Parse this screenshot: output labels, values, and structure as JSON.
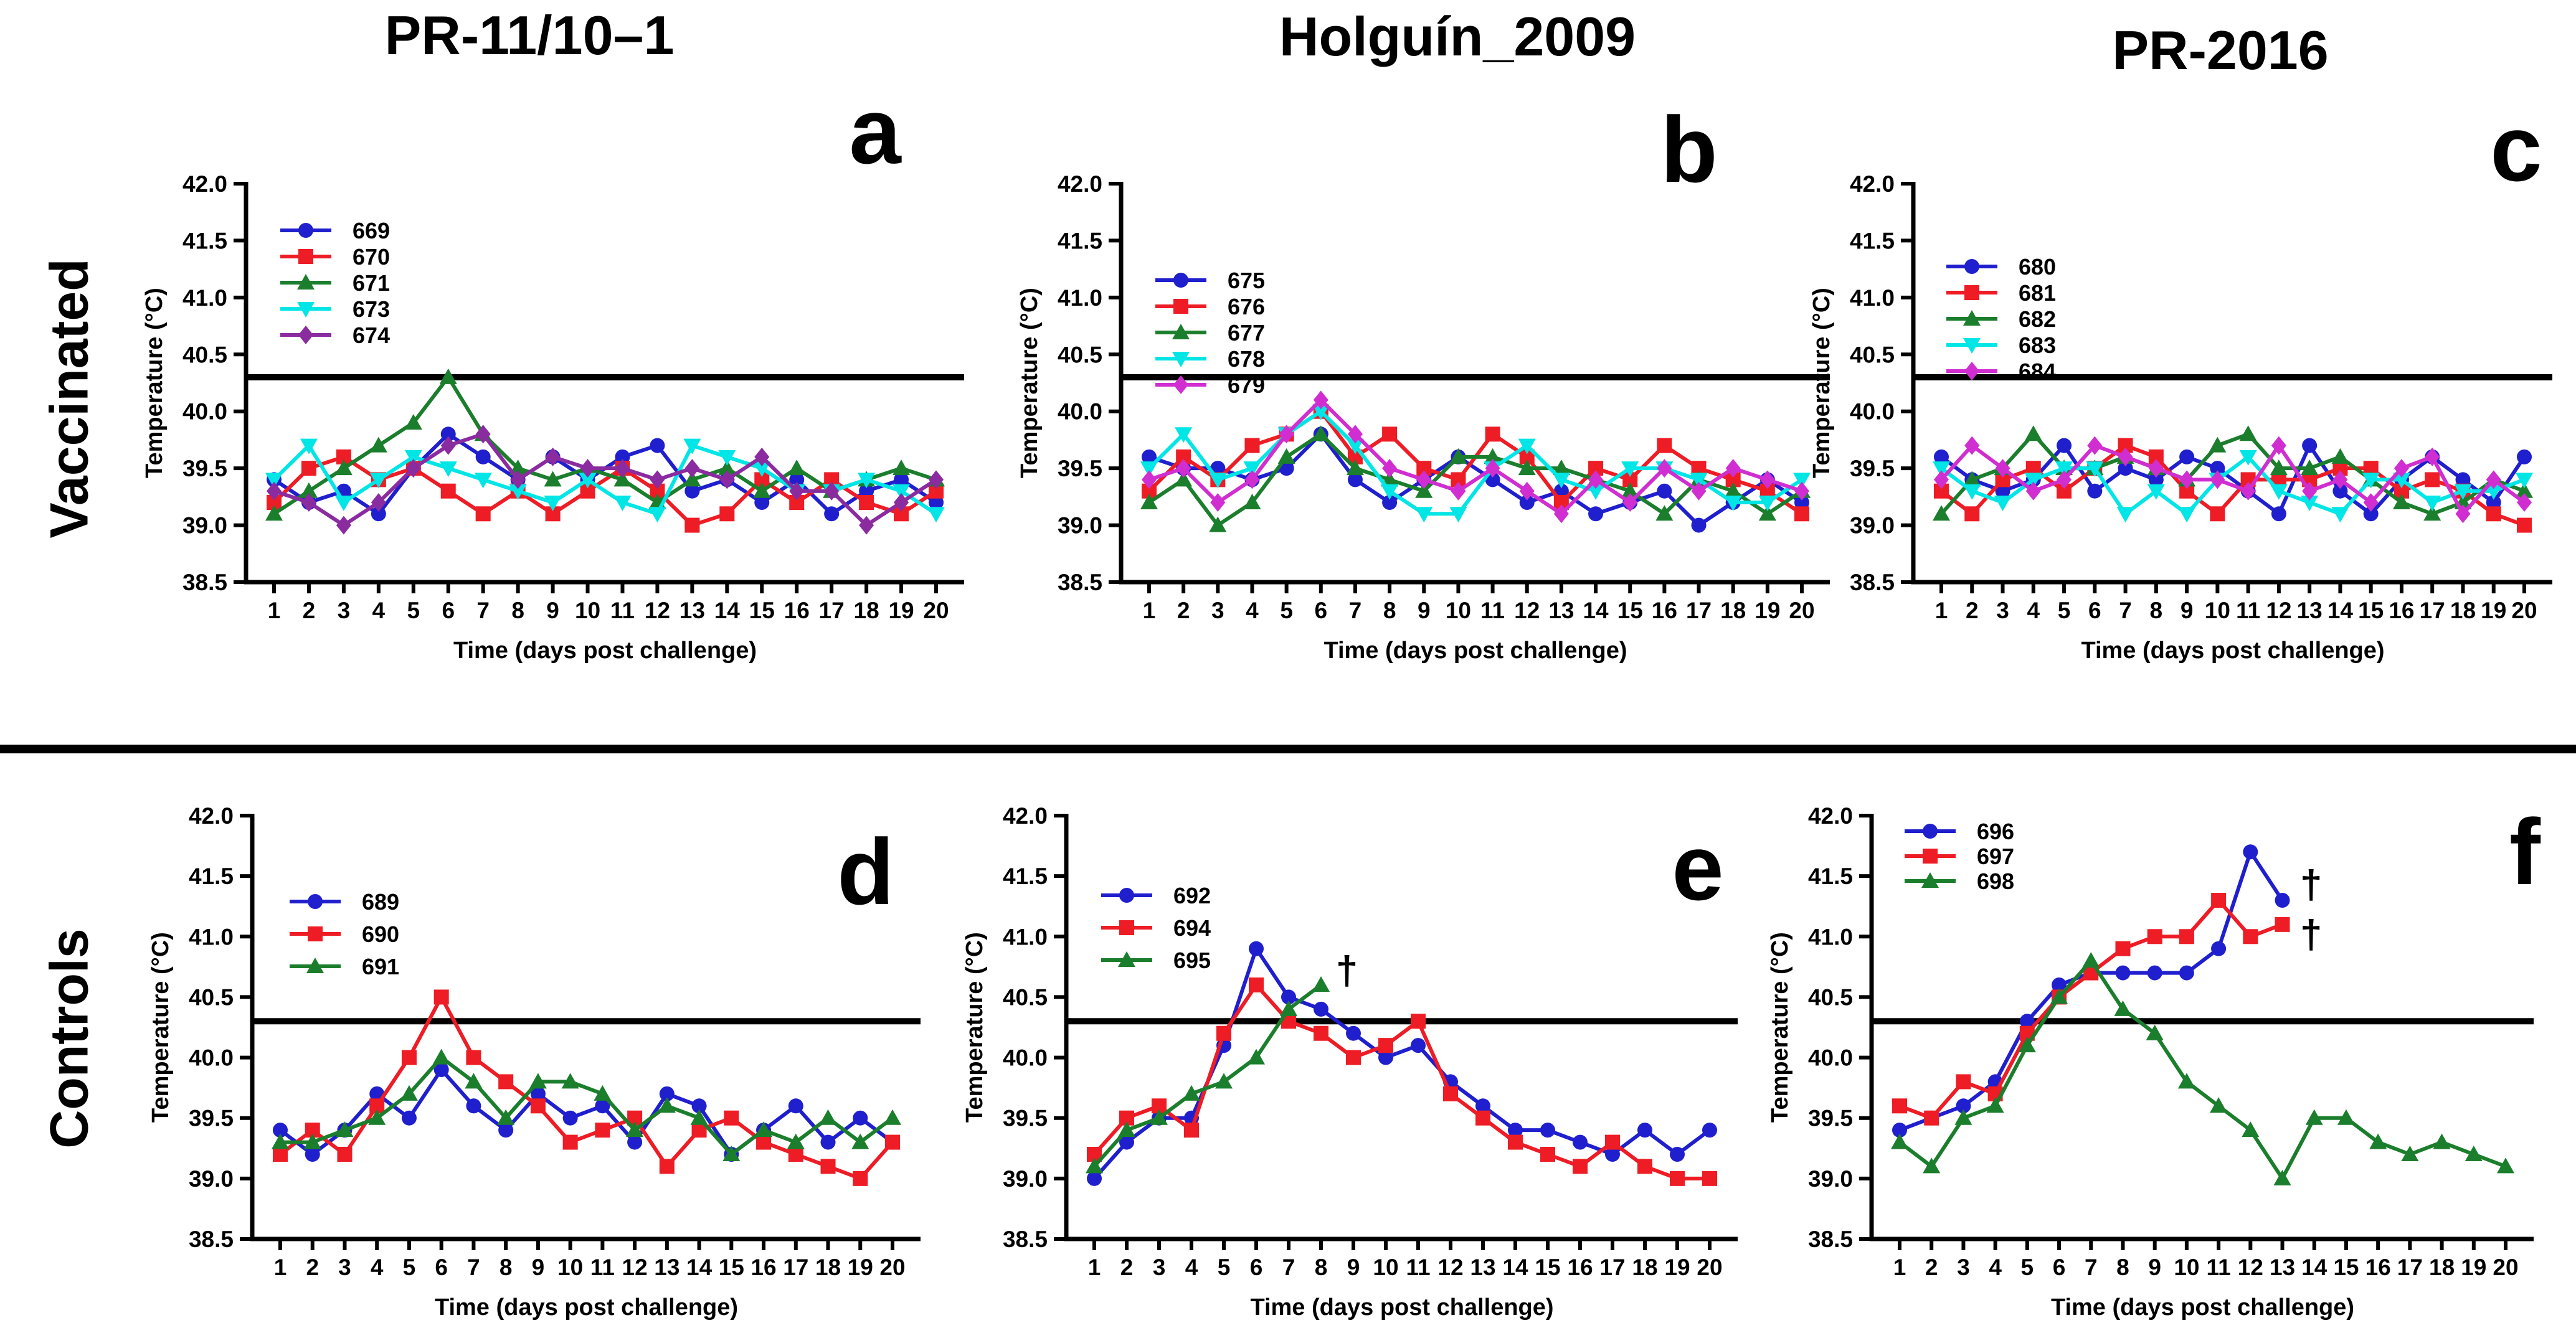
{
  "figure": {
    "column_titles": [
      "PR-11/10–1",
      "Holguín_2009",
      "PR-2016"
    ],
    "row_labels": [
      "Vaccinated",
      "Controls"
    ],
    "xlabel": "Time (days post challenge)",
    "ylabel": "Temperature (°C)",
    "threshold_c": 40.3,
    "ylim": [
      38.5,
      42.0
    ],
    "ytick_step": 0.5,
    "xticks": [
      1,
      2,
      3,
      4,
      5,
      6,
      7,
      8,
      9,
      10,
      11,
      12,
      13,
      14,
      15,
      16,
      17,
      18,
      19,
      20
    ],
    "panel_letters": [
      "a",
      "b",
      "c",
      "d",
      "e",
      "f"
    ],
    "death_symbol": "†"
  },
  "colors": {
    "blue": "#1F1FCE",
    "red": "#EE1C25",
    "green": "#1B7E2C",
    "cyan": "#00E5E5",
    "purple": "#8B2BA0",
    "magenta": "#D02ED0"
  },
  "chart_data": [
    {
      "id": "a",
      "letter": "a",
      "group": "Vaccinated",
      "strain": "PR-11/10–1",
      "type": "line",
      "xlabel": "Time (days post challenge)",
      "ylabel": "Temperature (°C)",
      "ylim": [
        38.5,
        42.0
      ],
      "threshold": 40.3,
      "series": [
        {
          "name": "669",
          "color": "blue",
          "marker": "circle",
          "values": [
            39.4,
            39.2,
            39.3,
            39.1,
            39.5,
            39.8,
            39.6,
            39.4,
            39.6,
            39.4,
            39.6,
            39.7,
            39.3,
            39.4,
            39.2,
            39.4,
            39.1,
            39.3,
            39.4,
            39.2
          ]
        },
        {
          "name": "670",
          "color": "red",
          "marker": "square",
          "values": [
            39.2,
            39.5,
            39.6,
            39.4,
            39.5,
            39.3,
            39.1,
            39.3,
            39.1,
            39.3,
            39.5,
            39.3,
            39.0,
            39.1,
            39.4,
            39.2,
            39.4,
            39.2,
            39.1,
            39.3
          ]
        },
        {
          "name": "671",
          "color": "green",
          "marker": "triangle-up",
          "values": [
            39.1,
            39.3,
            39.5,
            39.7,
            39.9,
            40.3,
            39.8,
            39.5,
            39.4,
            39.5,
            39.4,
            39.2,
            39.4,
            39.5,
            39.3,
            39.5,
            39.3,
            39.4,
            39.5,
            39.4
          ]
        },
        {
          "name": "673",
          "color": "cyan",
          "marker": "triangle-down",
          "values": [
            39.4,
            39.7,
            39.2,
            39.4,
            39.6,
            39.5,
            39.4,
            39.3,
            39.2,
            39.4,
            39.2,
            39.1,
            39.7,
            39.6,
            39.5,
            39.3,
            39.3,
            39.4,
            39.3,
            39.1
          ]
        },
        {
          "name": "674",
          "color": "purple",
          "marker": "diamond",
          "values": [
            39.3,
            39.2,
            39.0,
            39.2,
            39.5,
            39.7,
            39.8,
            39.4,
            39.6,
            39.5,
            39.5,
            39.4,
            39.5,
            39.4,
            39.6,
            39.3,
            39.3,
            39.0,
            39.2,
            39.4
          ]
        }
      ],
      "annotations": []
    },
    {
      "id": "b",
      "letter": "b",
      "group": "Vaccinated",
      "strain": "Holguín_2009",
      "type": "line",
      "xlabel": "Time (days post challenge)",
      "ylabel": "Temperature (°C)",
      "ylim": [
        38.5,
        42.0
      ],
      "threshold": 40.3,
      "series": [
        {
          "name": "675",
          "color": "blue",
          "marker": "circle",
          "values": [
            39.6,
            39.5,
            39.5,
            39.4,
            39.5,
            39.8,
            39.4,
            39.2,
            39.4,
            39.6,
            39.4,
            39.2,
            39.3,
            39.1,
            39.2,
            39.3,
            39.0,
            39.2,
            39.4,
            39.2
          ]
        },
        {
          "name": "676",
          "color": "red",
          "marker": "square",
          "values": [
            39.3,
            39.6,
            39.4,
            39.7,
            39.8,
            40.0,
            39.6,
            39.8,
            39.5,
            39.4,
            39.8,
            39.6,
            39.2,
            39.5,
            39.4,
            39.7,
            39.5,
            39.4,
            39.3,
            39.1
          ]
        },
        {
          "name": "677",
          "color": "green",
          "marker": "triangle-up",
          "values": [
            39.2,
            39.4,
            39.0,
            39.2,
            39.6,
            39.8,
            39.5,
            39.4,
            39.3,
            39.6,
            39.6,
            39.5,
            39.5,
            39.4,
            39.3,
            39.1,
            39.4,
            39.3,
            39.1,
            39.3
          ]
        },
        {
          "name": "678",
          "color": "cyan",
          "marker": "triangle-down",
          "values": [
            39.5,
            39.8,
            39.4,
            39.5,
            39.8,
            40.0,
            39.7,
            39.3,
            39.1,
            39.1,
            39.5,
            39.7,
            39.4,
            39.3,
            39.5,
            39.5,
            39.4,
            39.2,
            39.2,
            39.4
          ]
        },
        {
          "name": "679",
          "color": "magenta",
          "marker": "diamond",
          "values": [
            39.4,
            39.5,
            39.2,
            39.4,
            39.8,
            40.1,
            39.8,
            39.5,
            39.4,
            39.3,
            39.5,
            39.3,
            39.1,
            39.4,
            39.2,
            39.5,
            39.3,
            39.5,
            39.4,
            39.3
          ]
        }
      ],
      "annotations": []
    },
    {
      "id": "c",
      "letter": "c",
      "group": "Vaccinated",
      "strain": "PR-2016",
      "type": "line",
      "xlabel": "Time (days post challenge)",
      "ylabel": "Temperature (°C)",
      "ylim": [
        38.5,
        42.0
      ],
      "threshold": 40.3,
      "series": [
        {
          "name": "680",
          "color": "blue",
          "marker": "circle",
          "values": [
            39.6,
            39.4,
            39.3,
            39.4,
            39.7,
            39.3,
            39.5,
            39.4,
            39.6,
            39.5,
            39.3,
            39.1,
            39.7,
            39.3,
            39.1,
            39.4,
            39.6,
            39.4,
            39.2,
            39.6
          ]
        },
        {
          "name": "681",
          "color": "red",
          "marker": "square",
          "values": [
            39.3,
            39.1,
            39.4,
            39.5,
            39.3,
            39.5,
            39.7,
            39.6,
            39.3,
            39.1,
            39.4,
            39.4,
            39.4,
            39.5,
            39.5,
            39.3,
            39.4,
            39.3,
            39.1,
            39.0
          ]
        },
        {
          "name": "682",
          "color": "green",
          "marker": "triangle-up",
          "values": [
            39.1,
            39.4,
            39.5,
            39.8,
            39.5,
            39.5,
            39.6,
            39.5,
            39.4,
            39.7,
            39.8,
            39.5,
            39.5,
            39.6,
            39.4,
            39.2,
            39.1,
            39.2,
            39.4,
            39.3
          ]
        },
        {
          "name": "683",
          "color": "cyan",
          "marker": "triangle-down",
          "values": [
            39.5,
            39.3,
            39.2,
            39.4,
            39.5,
            39.5,
            39.1,
            39.3,
            39.1,
            39.4,
            39.6,
            39.3,
            39.2,
            39.1,
            39.4,
            39.4,
            39.2,
            39.3,
            39.3,
            39.4
          ]
        },
        {
          "name": "684",
          "color": "magenta",
          "marker": "diamond",
          "values": [
            39.4,
            39.7,
            39.5,
            39.3,
            39.4,
            39.7,
            39.6,
            39.5,
            39.4,
            39.4,
            39.3,
            39.7,
            39.3,
            39.4,
            39.2,
            39.5,
            39.6,
            39.1,
            39.4,
            39.2
          ]
        }
      ],
      "annotations": []
    },
    {
      "id": "d",
      "letter": "d",
      "group": "Controls",
      "strain": "PR-11/10–1",
      "type": "line",
      "xlabel": "Time (days post challenge)",
      "ylabel": "Temperature (°C)",
      "ylim": [
        38.5,
        42.0
      ],
      "threshold": 40.3,
      "series": [
        {
          "name": "689",
          "color": "blue",
          "marker": "circle",
          "values": [
            39.4,
            39.2,
            39.4,
            39.7,
            39.5,
            39.9,
            39.6,
            39.4,
            39.7,
            39.5,
            39.6,
            39.3,
            39.7,
            39.6,
            39.2,
            39.4,
            39.6,
            39.3,
            39.5,
            39.3
          ]
        },
        {
          "name": "690",
          "color": "red",
          "marker": "square",
          "values": [
            39.2,
            39.4,
            39.2,
            39.6,
            40.0,
            40.5,
            40.0,
            39.8,
            39.6,
            39.3,
            39.4,
            39.5,
            39.1,
            39.4,
            39.5,
            39.3,
            39.2,
            39.1,
            39.0,
            39.3
          ]
        },
        {
          "name": "691",
          "color": "green",
          "marker": "triangle-up",
          "values": [
            39.3,
            39.3,
            39.4,
            39.5,
            39.7,
            40.0,
            39.8,
            39.5,
            39.8,
            39.8,
            39.7,
            39.4,
            39.6,
            39.5,
            39.2,
            39.4,
            39.3,
            39.5,
            39.3,
            39.5
          ]
        }
      ],
      "annotations": []
    },
    {
      "id": "e",
      "letter": "e",
      "group": "Controls",
      "strain": "Holguín_2009",
      "type": "line",
      "xlabel": "Time (days post challenge)",
      "ylabel": "Temperature (°C)",
      "ylim": [
        38.5,
        42.0
      ],
      "threshold": 40.3,
      "series": [
        {
          "name": "692",
          "color": "blue",
          "marker": "circle",
          "values": [
            39.0,
            39.3,
            39.5,
            39.5,
            40.1,
            40.9,
            40.5,
            40.4,
            40.2,
            40.0,
            40.1,
            39.8,
            39.6,
            39.4,
            39.4,
            39.3,
            39.2,
            39.4,
            39.2,
            39.4
          ]
        },
        {
          "name": "694",
          "color": "red",
          "marker": "square",
          "values": [
            39.2,
            39.5,
            39.6,
            39.4,
            40.2,
            40.6,
            40.3,
            40.2,
            40.0,
            40.1,
            40.3,
            39.7,
            39.5,
            39.3,
            39.2,
            39.1,
            39.3,
            39.1,
            39.0,
            39.0
          ]
        },
        {
          "name": "695",
          "color": "green",
          "marker": "triangle-up",
          "values": [
            39.1,
            39.4,
            39.5,
            39.7,
            39.8,
            40.0,
            40.4,
            40.6
          ]
        }
      ],
      "annotations": [
        {
          "symbol": "†",
          "day": 8.8,
          "temp": 40.72
        }
      ]
    },
    {
      "id": "f",
      "letter": "f",
      "group": "Controls",
      "strain": "PR-2016",
      "type": "line",
      "xlabel": "Time (days post challenge)",
      "ylabel": "Temperature (°C)",
      "ylim": [
        38.5,
        42.0
      ],
      "threshold": 40.3,
      "series": [
        {
          "name": "696",
          "color": "blue",
          "marker": "circle",
          "values": [
            39.4,
            39.5,
            39.6,
            39.8,
            40.3,
            40.6,
            40.7,
            40.7,
            40.7,
            40.7,
            40.9,
            41.7,
            41.3
          ]
        },
        {
          "name": "697",
          "color": "red",
          "marker": "square",
          "values": [
            39.6,
            39.5,
            39.8,
            39.7,
            40.2,
            40.5,
            40.7,
            40.9,
            41.0,
            41.0,
            41.3,
            41.0,
            41.1
          ]
        },
        {
          "name": "698",
          "color": "green",
          "marker": "triangle-up",
          "values": [
            39.3,
            39.1,
            39.5,
            39.6,
            40.1,
            40.5,
            40.8,
            40.4,
            40.2,
            39.8,
            39.6,
            39.4,
            39.0,
            39.5,
            39.5,
            39.3,
            39.2,
            39.3,
            39.2,
            39.1
          ]
        }
      ],
      "annotations": [
        {
          "symbol": "†",
          "day": 13.9,
          "temp": 41.43
        },
        {
          "symbol": "†",
          "day": 13.9,
          "temp": 41.02
        }
      ]
    }
  ]
}
